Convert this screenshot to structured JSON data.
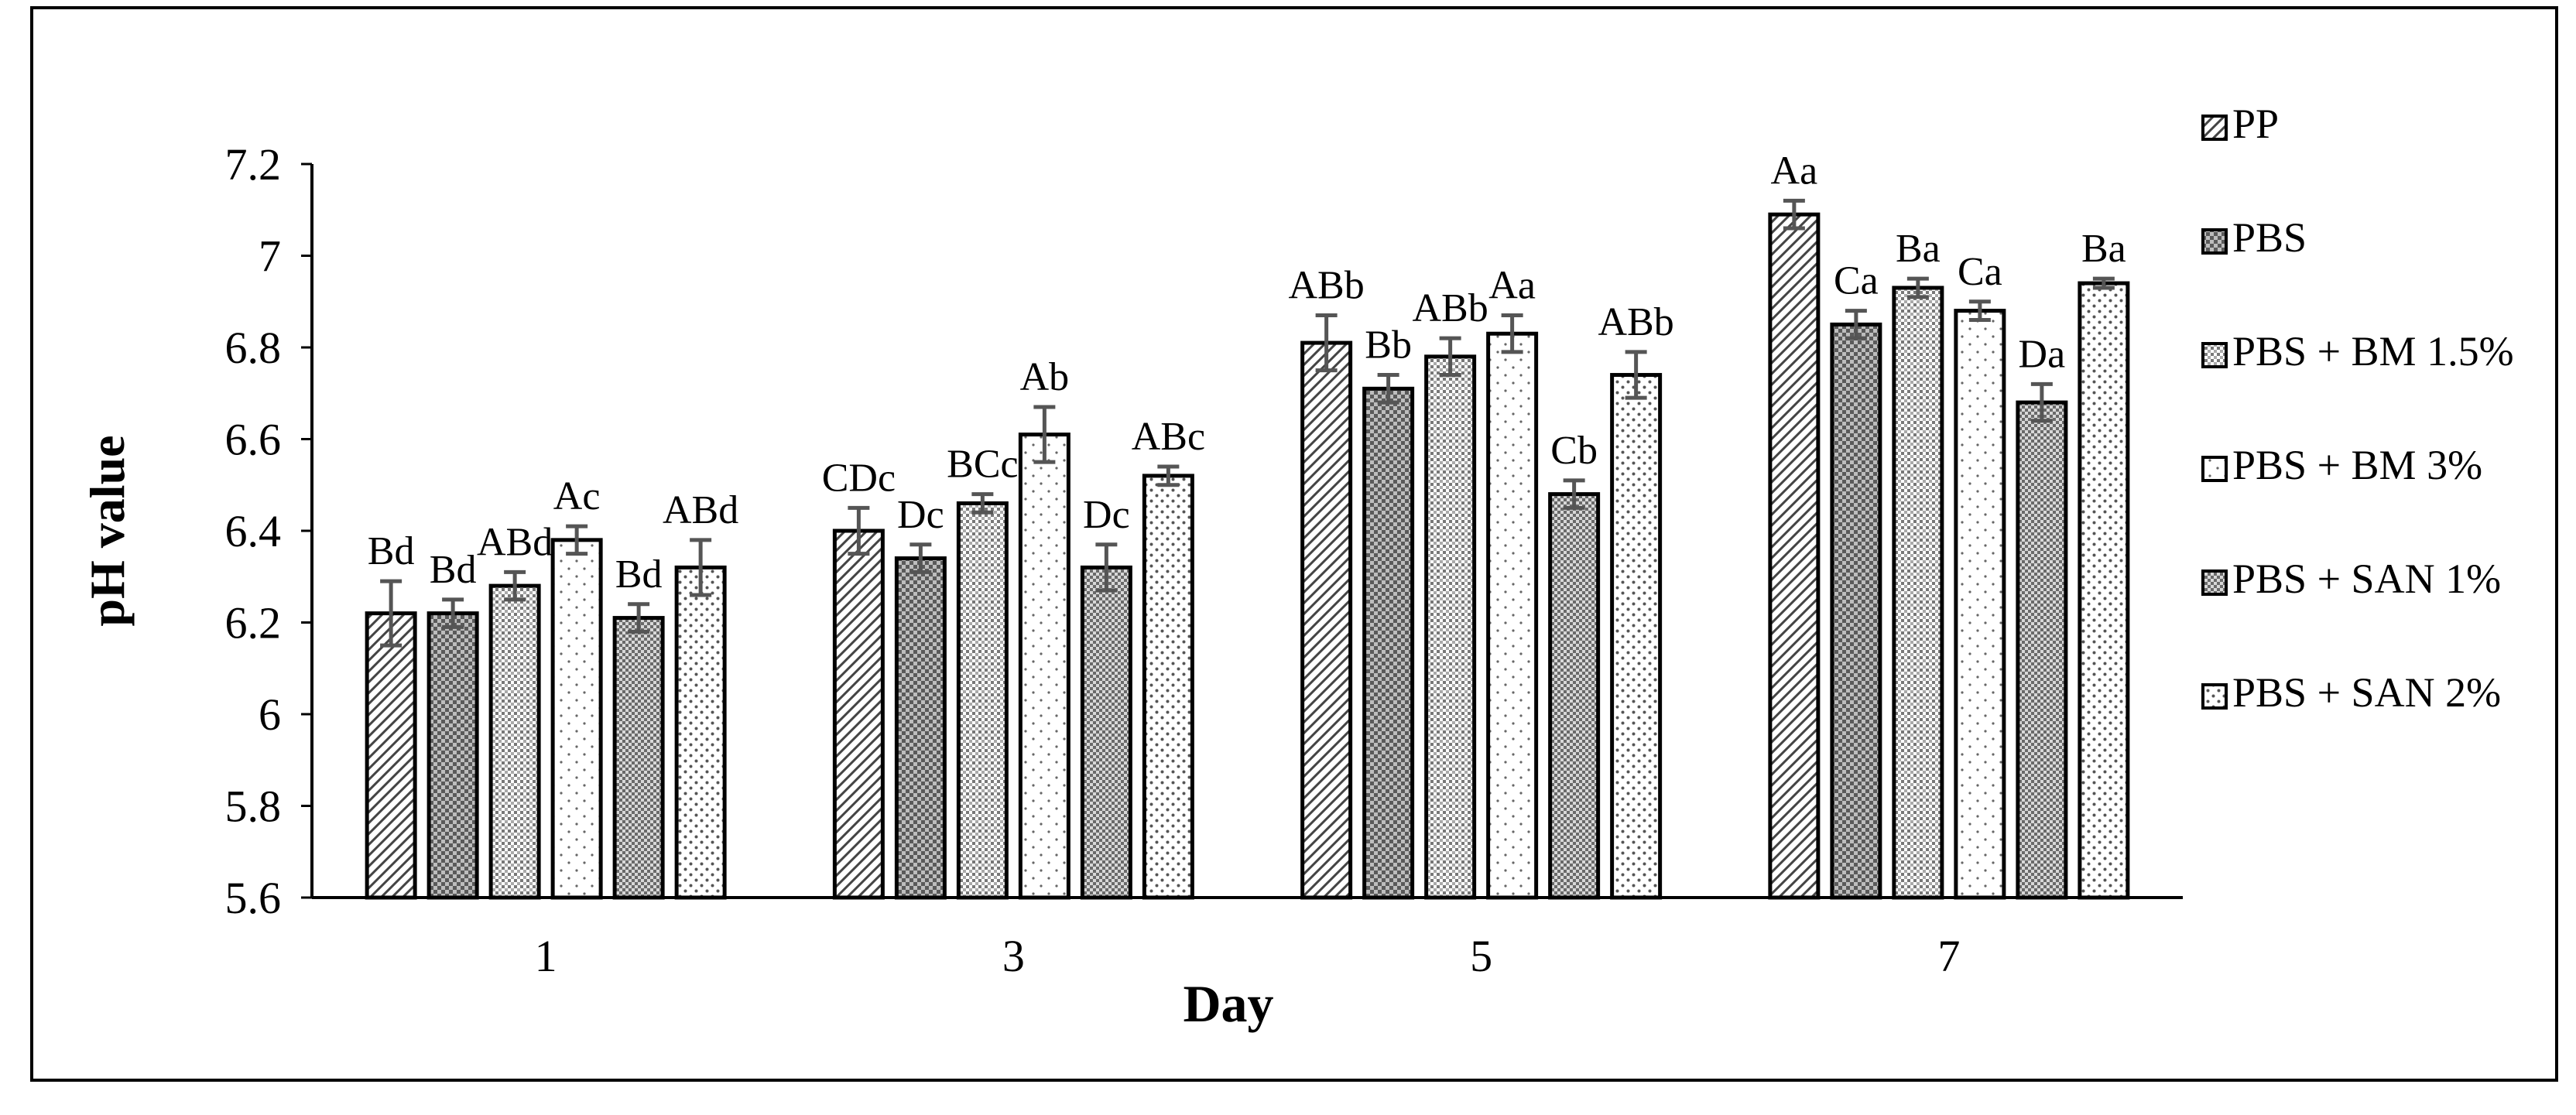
{
  "chart_data": {
    "type": "bar",
    "xlabel": "Day",
    "ylabel": "pH value",
    "ylim": [
      5.6,
      7.2
    ],
    "yticks": [
      "5.6",
      "5.8",
      "6",
      "6.2",
      "6.4",
      "6.6",
      "6.8",
      "7",
      "7.2"
    ],
    "categories": [
      "1",
      "3",
      "5",
      "7"
    ],
    "legend_position": "right",
    "series": [
      {
        "name": "PP",
        "pattern": "diagonal-hatch",
        "values": [
          6.22,
          6.4,
          6.81,
          7.09
        ],
        "errors": [
          0.07,
          0.05,
          0.06,
          0.03
        ],
        "labels": [
          "Bd",
          "CDc",
          "ABb",
          "Aa"
        ]
      },
      {
        "name": "PBS",
        "pattern": "checker",
        "values": [
          6.22,
          6.34,
          6.71,
          6.85
        ],
        "errors": [
          0.03,
          0.03,
          0.03,
          0.03
        ],
        "labels": [
          "Bd",
          "Dc",
          "Bb",
          "Ca"
        ]
      },
      {
        "name": "PBS + BM 1.5%",
        "pattern": "fine-dots",
        "values": [
          6.28,
          6.46,
          6.78,
          6.93
        ],
        "errors": [
          0.03,
          0.02,
          0.04,
          0.02
        ],
        "labels": [
          "ABd",
          "BCc",
          "ABb",
          "Ba"
        ]
      },
      {
        "name": "PBS + BM 3%",
        "pattern": "sparse-dots",
        "values": [
          6.38,
          6.61,
          6.83,
          6.88
        ],
        "errors": [
          0.03,
          0.06,
          0.04,
          0.02
        ],
        "labels": [
          "Ac",
          "Ab",
          "Aa",
          "Ca"
        ]
      },
      {
        "name": "PBS + SAN 1%",
        "pattern": "dense-checker",
        "values": [
          6.21,
          6.32,
          6.48,
          6.68
        ],
        "errors": [
          0.03,
          0.05,
          0.03,
          0.04
        ],
        "labels": [
          "Bd",
          "Dc",
          "Cb",
          "Da"
        ]
      },
      {
        "name": "PBS + SAN 2%",
        "pattern": "medium-dots",
        "values": [
          6.32,
          6.52,
          6.74,
          6.94
        ],
        "errors": [
          0.06,
          0.02,
          0.05,
          0.01
        ],
        "labels": [
          "ABd",
          "ABc",
          "ABb",
          "Ba"
        ]
      }
    ]
  }
}
